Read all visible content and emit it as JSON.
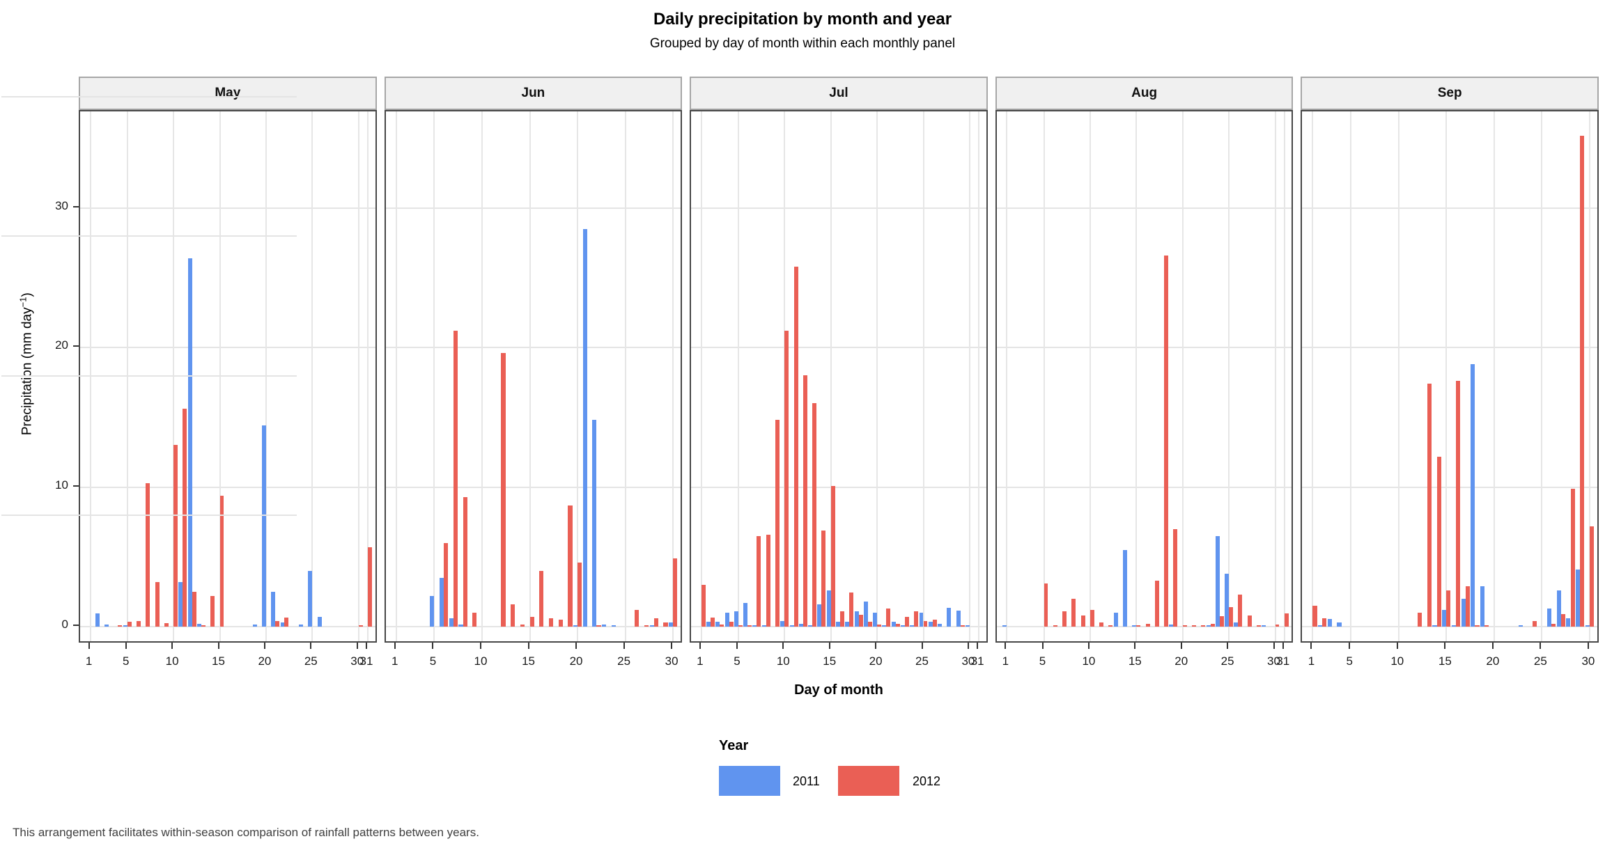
{
  "title": "Daily precipitation by month and year",
  "subtitle": "Grouped by day of month within each monthly panel",
  "footer": "This arrangement facilitates within-season comparison of rainfall patterns between years.",
  "axes": {
    "x_label": "Day of month",
    "y_label_prefix": "Precipitation (mm day",
    "y_label_sup": "−1",
    "y_label_suffix": ")"
  },
  "legend": {
    "title": "Year",
    "entries": [
      {
        "label": "2011",
        "color": "#6094EF"
      },
      {
        "label": "2012",
        "color": "#EA5F55"
      }
    ]
  },
  "chart_data": {
    "type": "bar",
    "title": "Daily precipitation by month and year",
    "subtitle": "Grouped by day of month within each monthly panel",
    "xlabel": "Day of month",
    "ylabel": "Precipitation (mm day^-1)",
    "ylim": [
      0,
      37
    ],
    "yticks": [
      0,
      10,
      20,
      30
    ],
    "grid": true,
    "legend_position": "bottom",
    "series_names": [
      "2011",
      "2012"
    ],
    "colors": {
      "s2011": "#6094EF",
      "s2012": "#EA5F55"
    },
    "panels": [
      {
        "month": "May",
        "n_days": 31,
        "xticks": [
          1,
          5,
          10,
          15,
          20,
          25,
          30,
          31
        ],
        "bars": [
          [
            2,
            0.95,
            0
          ],
          [
            3,
            0.15,
            0
          ],
          [
            4,
            0,
            0.1
          ],
          [
            5,
            0.1,
            0.35
          ],
          [
            6,
            0,
            0.4
          ],
          [
            7,
            0,
            10.3
          ],
          [
            8,
            0,
            3.2
          ],
          [
            9,
            0,
            0.25
          ],
          [
            10,
            0,
            13.0
          ],
          [
            11,
            3.2,
            15.6
          ],
          [
            12,
            26.4,
            2.5
          ],
          [
            13,
            0.2,
            0.1
          ],
          [
            14,
            0,
            2.2
          ],
          [
            15,
            0,
            9.4
          ],
          [
            19,
            0.15,
            0
          ],
          [
            20,
            14.4,
            0
          ],
          [
            21,
            2.5,
            0.4
          ],
          [
            22,
            0.3,
            0.65
          ],
          [
            24,
            0.15,
            0
          ],
          [
            25,
            4.0,
            0
          ],
          [
            26,
            0.7,
            0
          ],
          [
            30,
            0,
            0.1
          ],
          [
            31,
            0,
            5.7
          ]
        ]
      },
      {
        "month": "Jun",
        "n_days": 30,
        "xticks": [
          1,
          5,
          10,
          15,
          20,
          25,
          30
        ],
        "bars": [
          [
            5,
            2.2,
            0
          ],
          [
            6,
            3.5,
            6.0
          ],
          [
            7,
            0.6,
            21.2
          ],
          [
            8,
            0.15,
            9.3
          ],
          [
            9,
            0,
            1.0
          ],
          [
            12,
            0,
            19.6
          ],
          [
            13,
            0,
            1.6
          ],
          [
            14,
            0,
            0.15
          ],
          [
            15,
            0,
            0.7
          ],
          [
            16,
            0,
            4.0
          ],
          [
            17,
            0,
            0.6
          ],
          [
            18,
            0,
            0.5
          ],
          [
            19,
            0,
            8.7
          ],
          [
            20,
            0.1,
            4.6
          ],
          [
            21,
            28.5,
            0
          ],
          [
            22,
            14.8,
            0.1
          ],
          [
            23,
            0.15,
            0
          ],
          [
            24,
            0.1,
            0
          ],
          [
            26,
            0,
            1.2
          ],
          [
            27,
            0,
            0.1
          ],
          [
            28,
            0.1,
            0.6
          ],
          [
            29,
            0,
            0.3
          ],
          [
            30,
            0.3,
            4.9
          ]
        ]
      },
      {
        "month": "Jul",
        "n_days": 31,
        "xticks": [
          1,
          5,
          10,
          15,
          20,
          25,
          30,
          31
        ],
        "bars": [
          [
            1,
            0,
            3.0
          ],
          [
            2,
            0.35,
            0.65
          ],
          [
            3,
            0.35,
            0.15
          ],
          [
            4,
            1.0,
            0.35
          ],
          [
            5,
            1.1,
            0.1
          ],
          [
            6,
            1.7,
            0.1
          ],
          [
            7,
            0.05,
            6.5
          ],
          [
            8,
            0.05,
            6.6
          ],
          [
            9,
            0,
            14.8
          ],
          [
            10,
            0.4,
            21.2
          ],
          [
            11,
            0.1,
            25.8
          ],
          [
            12,
            0.2,
            18.0
          ],
          [
            13,
            0.05,
            16.0
          ],
          [
            14,
            1.6,
            6.9
          ],
          [
            15,
            2.6,
            10.1
          ],
          [
            16,
            0.35,
            1.1
          ],
          [
            17,
            0.35,
            2.45
          ],
          [
            18,
            1.1,
            0.85
          ],
          [
            19,
            1.8,
            0.35
          ],
          [
            20,
            1.0,
            0.15
          ],
          [
            21,
            0.1,
            1.3
          ],
          [
            22,
            0.35,
            0.2
          ],
          [
            23,
            0.1,
            0.7
          ],
          [
            24,
            0.1,
            1.1
          ],
          [
            25,
            1.0,
            0.4
          ],
          [
            26,
            0.35,
            0.5
          ],
          [
            27,
            0.2,
            0
          ],
          [
            28,
            1.35,
            0
          ],
          [
            29,
            1.15,
            0.1
          ],
          [
            30,
            0.1,
            0
          ]
        ]
      },
      {
        "month": "Aug",
        "n_days": 31,
        "xticks": [
          1,
          5,
          10,
          15,
          20,
          25,
          30,
          31
        ],
        "bars": [
          [
            1,
            0.1,
            0
          ],
          [
            5,
            0,
            3.1
          ],
          [
            6,
            0,
            0.1
          ],
          [
            7,
            0,
            1.1
          ],
          [
            8,
            0,
            2.0
          ],
          [
            9,
            0,
            0.8
          ],
          [
            10,
            0,
            1.2
          ],
          [
            11,
            0,
            0.3
          ],
          [
            12,
            0,
            0.1
          ],
          [
            13,
            1.0,
            0
          ],
          [
            14,
            5.5,
            0
          ],
          [
            15,
            0.1,
            0.1
          ],
          [
            16,
            0,
            0.2
          ],
          [
            17,
            0,
            3.3
          ],
          [
            18,
            0,
            26.6
          ],
          [
            19,
            0.15,
            7.0
          ],
          [
            20,
            0,
            0.1
          ],
          [
            21,
            0,
            0.1
          ],
          [
            22,
            0,
            0.1
          ],
          [
            23,
            0.1,
            0.2
          ],
          [
            24,
            6.5,
            0.75
          ],
          [
            25,
            3.8,
            1.4
          ],
          [
            26,
            0.3,
            2.3
          ],
          [
            27,
            0,
            0.8
          ],
          [
            28,
            0,
            0.1
          ],
          [
            29,
            0.1,
            0
          ],
          [
            30,
            0,
            0.15
          ],
          [
            31,
            0,
            0.95
          ]
        ]
      },
      {
        "month": "Sep",
        "n_days": 30,
        "xticks": [
          1,
          5,
          10,
          15,
          20,
          25,
          30
        ],
        "bars": [
          [
            1,
            0,
            1.5
          ],
          [
            2,
            0.1,
            0.6
          ],
          [
            3,
            0.55,
            0
          ],
          [
            4,
            0.3,
            0
          ],
          [
            12,
            0,
            1.0
          ],
          [
            13,
            0,
            17.4
          ],
          [
            14,
            0.1,
            12.2
          ],
          [
            15,
            1.2,
            2.6
          ],
          [
            16,
            0.1,
            17.6
          ],
          [
            17,
            2.0,
            2.9
          ],
          [
            18,
            18.8,
            0.1
          ],
          [
            19,
            2.9,
            0.1
          ],
          [
            23,
            0.1,
            0
          ],
          [
            24,
            0,
            0.4
          ],
          [
            26,
            1.3,
            0.2
          ],
          [
            27,
            2.6,
            0.9
          ],
          [
            28,
            0.6,
            9.9
          ],
          [
            29,
            4.1,
            35.2
          ],
          [
            30,
            0.1,
            7.2
          ]
        ]
      }
    ]
  }
}
